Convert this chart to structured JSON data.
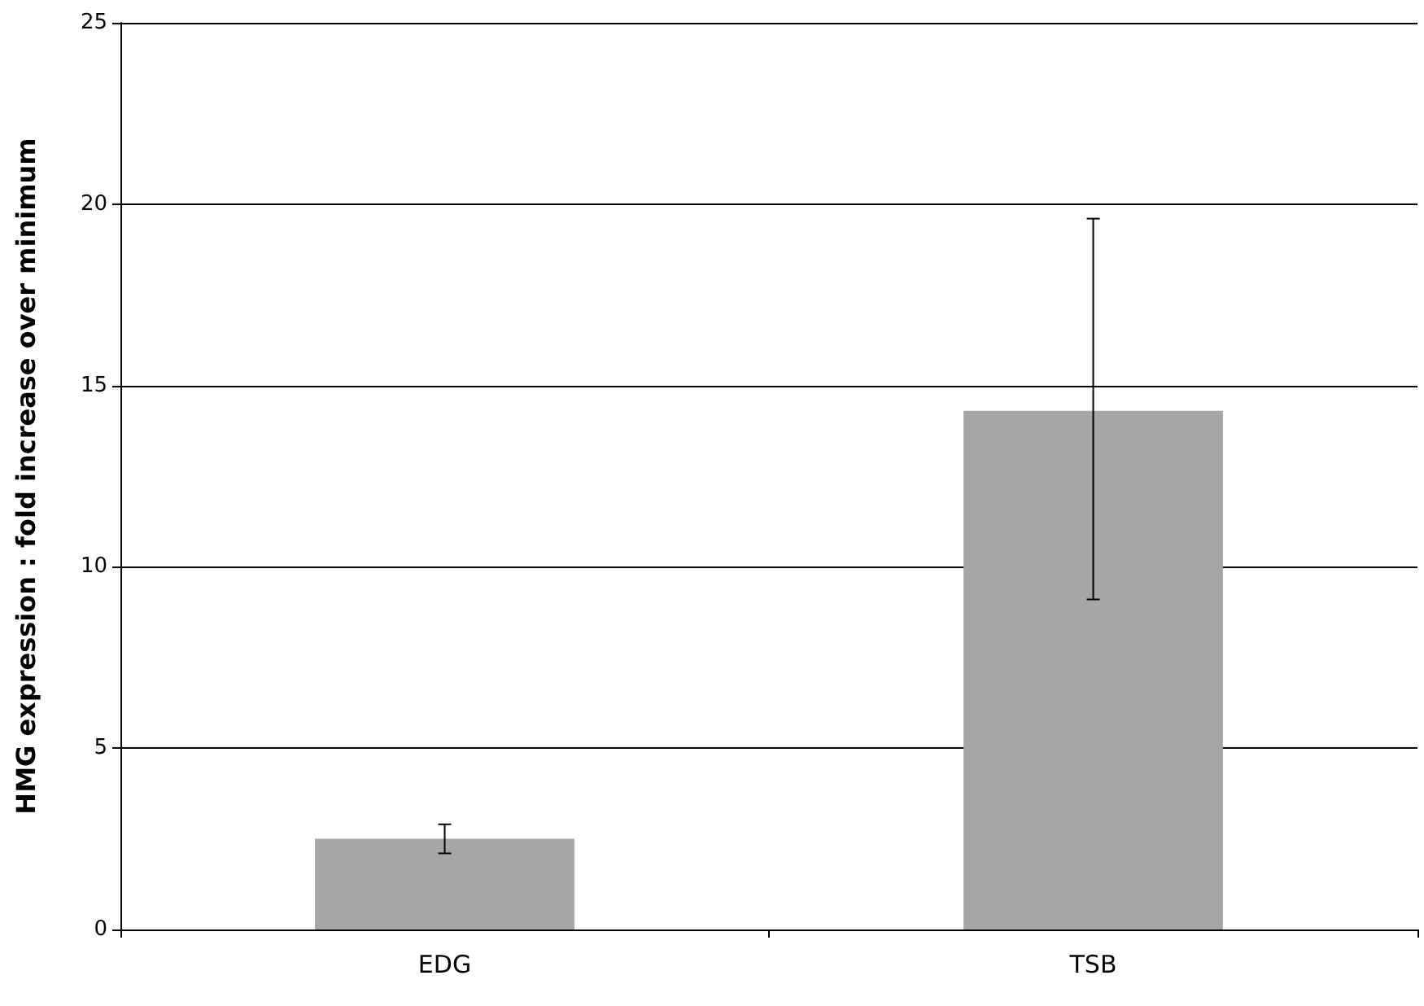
{
  "chart_data": {
    "type": "bar",
    "ylabel": "HMG expression : fold increase over minimum",
    "categories": [
      "EDG",
      "TSB"
    ],
    "values": [
      2.5,
      14.3
    ],
    "color": "#a6a6a6",
    "errors": [
      [
        2.1,
        2.9
      ],
      [
        9.1,
        19.6
      ]
    ],
    "ylim": [
      0,
      25
    ],
    "yticks": [
      0,
      5,
      10,
      15,
      20,
      25
    ],
    "grid": "y"
  }
}
